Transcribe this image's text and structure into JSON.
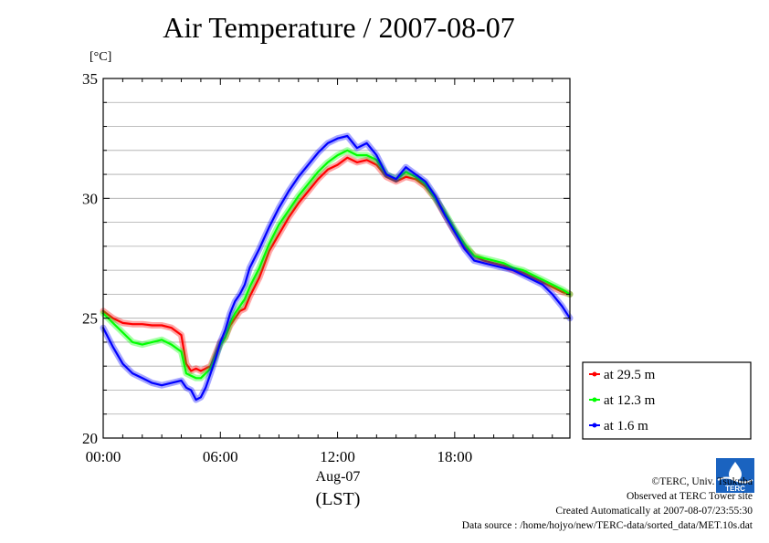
{
  "title": "Air Temperature / 2007-08-07",
  "unit_label": "[°C]",
  "x_date_label": "Aug-07",
  "x_tz_label": "(LST)",
  "credits": {
    "copyright": "©TERC, Univ. Tsukuba",
    "site": "Observed at TERC Tower site",
    "created": "Created Automatically at 2007-08-07/23:55:30",
    "source": "Data source : /home/hojyo/new/TERC-data/sorted_data/MET.10s.dat"
  },
  "logo_icon": "terc-logo-icon",
  "logo_text": "TERC",
  "chart_data": {
    "type": "line",
    "x_unit": "hour",
    "xlim": [
      0,
      23.9
    ],
    "ylim": [
      20,
      35
    ],
    "x_tick_values": [
      0,
      6,
      12,
      18
    ],
    "x_ticks": [
      "00:00",
      "06:00",
      "12:00",
      "18:00"
    ],
    "y_ticks": [
      "20",
      "25",
      "30",
      "35"
    ],
    "y_tick_values": [
      20,
      25,
      30,
      35
    ],
    "grid": true,
    "grid_step": 1,
    "legend_position": "right, outside",
    "x": [
      0,
      0.5,
      1,
      1.5,
      2,
      2.5,
      3,
      3.5,
      4,
      4.25,
      4.5,
      4.75,
      5,
      5.25,
      5.5,
      5.75,
      6,
      6.25,
      6.5,
      6.75,
      7,
      7.25,
      7.5,
      8,
      8.5,
      9,
      9.5,
      10,
      10.5,
      11,
      11.5,
      12,
      12.5,
      13,
      13.5,
      14,
      14.5,
      15,
      15.5,
      16,
      16.5,
      17,
      17.5,
      18,
      18.5,
      19,
      19.5,
      20,
      20.5,
      21,
      21.5,
      22,
      22.5,
      23,
      23.5,
      23.9
    ],
    "series": [
      {
        "name": "at 29.5 m",
        "color": "#ff0000",
        "values": [
          25.3,
          25.0,
          24.8,
          24.75,
          24.75,
          24.7,
          24.7,
          24.6,
          24.3,
          23.1,
          22.8,
          22.9,
          22.8,
          22.9,
          23.0,
          23.5,
          24.0,
          24.2,
          24.7,
          25.0,
          25.3,
          25.4,
          25.9,
          26.7,
          27.8,
          28.5,
          29.2,
          29.8,
          30.3,
          30.8,
          31.2,
          31.4,
          31.7,
          31.5,
          31.6,
          31.4,
          30.9,
          30.7,
          30.9,
          30.8,
          30.5,
          30.0,
          29.3,
          28.6,
          28.0,
          27.6,
          27.4,
          27.3,
          27.2,
          27.0,
          26.9,
          26.7,
          26.5,
          26.3,
          26.1,
          26.0
        ]
      },
      {
        "name": "at 12.3 m",
        "color": "#00ff00",
        "values": [
          25.2,
          24.8,
          24.4,
          24.0,
          23.9,
          24.0,
          24.1,
          23.9,
          23.6,
          22.7,
          22.6,
          22.5,
          22.5,
          22.7,
          22.9,
          23.4,
          23.9,
          24.2,
          24.8,
          25.2,
          25.5,
          25.8,
          26.3,
          27.1,
          28.1,
          28.9,
          29.5,
          30.1,
          30.6,
          31.1,
          31.5,
          31.8,
          32.0,
          31.8,
          31.8,
          31.6,
          31.0,
          30.8,
          31.1,
          30.9,
          30.6,
          30.0,
          29.4,
          28.7,
          28.1,
          27.6,
          27.5,
          27.4,
          27.3,
          27.1,
          27.0,
          26.8,
          26.6,
          26.4,
          26.2,
          26.0
        ]
      },
      {
        "name": "at 1.6 m",
        "color": "#0000ff",
        "values": [
          24.6,
          23.8,
          23.1,
          22.7,
          22.5,
          22.3,
          22.2,
          22.3,
          22.4,
          22.1,
          22.0,
          21.6,
          21.7,
          22.1,
          22.7,
          23.3,
          24.0,
          24.5,
          25.2,
          25.7,
          26.0,
          26.4,
          27.1,
          27.9,
          28.8,
          29.6,
          30.3,
          30.9,
          31.4,
          31.9,
          32.3,
          32.5,
          32.6,
          32.1,
          32.3,
          31.8,
          31.0,
          30.8,
          31.3,
          31.0,
          30.7,
          30.1,
          29.3,
          28.6,
          27.9,
          27.4,
          27.3,
          27.2,
          27.1,
          27.0,
          26.8,
          26.6,
          26.4,
          26.0,
          25.5,
          25.0
        ]
      }
    ]
  }
}
